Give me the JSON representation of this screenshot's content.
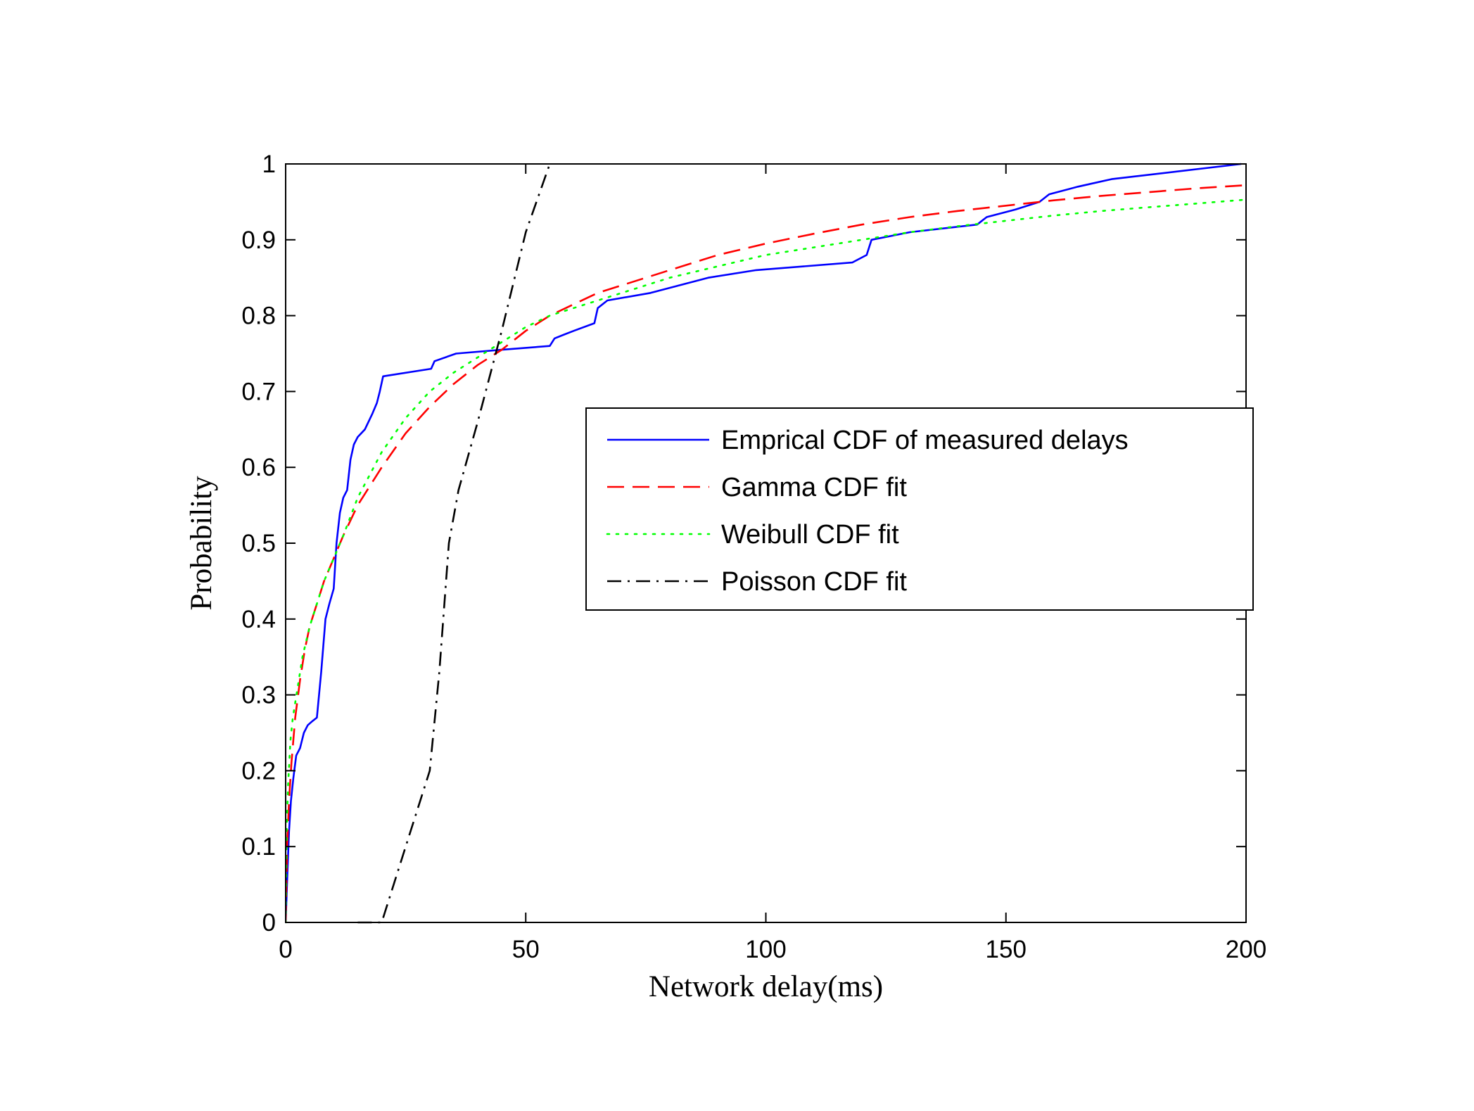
{
  "chart_data": {
    "type": "line",
    "xlabel": "Network delay(ms)",
    "ylabel": "Probability",
    "xlim": [
      0,
      200
    ],
    "ylim": [
      0,
      1
    ],
    "xticks": [
      0,
      50,
      100,
      150,
      200
    ],
    "yticks": [
      0,
      0.1,
      0.2,
      0.3,
      0.4,
      0.5,
      0.6,
      0.7,
      0.8,
      0.9,
      1
    ],
    "grid": false,
    "legend_position": "center-right",
    "series": [
      {
        "name": "Emprical CDF of measured delays",
        "color": "#0000ff",
        "style": "solid",
        "x": [
          0,
          0.4,
          0.7,
          1.1,
          1.6,
          2.2,
          3,
          3.8,
          4.6,
          5.5,
          6.5,
          7.4,
          8.3,
          9.1,
          10,
          10.6,
          11.3,
          12,
          12.8,
          13.5,
          14.2,
          15,
          16.5,
          18,
          19,
          19.6,
          20.3,
          30.3,
          31,
          35.5,
          45,
          55,
          56,
          58,
          60,
          64.3,
          65,
          67,
          76,
          88,
          98,
          118,
          121,
          122,
          130,
          144,
          146,
          152,
          157,
          159,
          165,
          172,
          199
        ],
        "y": [
          0,
          0.07,
          0.12,
          0.16,
          0.19,
          0.22,
          0.23,
          0.25,
          0.26,
          0.265,
          0.27,
          0.33,
          0.4,
          0.42,
          0.44,
          0.5,
          0.54,
          0.56,
          0.57,
          0.61,
          0.63,
          0.64,
          0.65,
          0.67,
          0.685,
          0.7,
          0.72,
          0.73,
          0.74,
          0.75,
          0.755,
          0.76,
          0.77,
          0.775,
          0.78,
          0.79,
          0.81,
          0.82,
          0.83,
          0.85,
          0.86,
          0.87,
          0.88,
          0.9,
          0.91,
          0.92,
          0.93,
          0.94,
          0.95,
          0.96,
          0.97,
          0.98,
          1.0
        ]
      },
      {
        "name": "Gamma CDF fit",
        "color": "#ff0000",
        "style": "dashed",
        "x": [
          0,
          0.3,
          0.7,
          1.2,
          2,
          3,
          4,
          5,
          6.5,
          8,
          10,
          12,
          15,
          20,
          25,
          30,
          35,
          40,
          45,
          50,
          55,
          60,
          65,
          70,
          75,
          80,
          90,
          100,
          110,
          120,
          130,
          140,
          150,
          160,
          170,
          180,
          190,
          200
        ],
        "y": [
          0,
          0.1,
          0.16,
          0.21,
          0.27,
          0.32,
          0.36,
          0.39,
          0.42,
          0.45,
          0.48,
          0.51,
          0.55,
          0.6,
          0.645,
          0.68,
          0.71,
          0.735,
          0.755,
          0.78,
          0.8,
          0.815,
          0.83,
          0.84,
          0.85,
          0.86,
          0.88,
          0.895,
          0.908,
          0.92,
          0.93,
          0.938,
          0.945,
          0.952,
          0.958,
          0.963,
          0.968,
          0.972
        ]
      },
      {
        "name": "Weibull CDF fit",
        "color": "#00ff00",
        "style": "dotted",
        "x": [
          0,
          0.2,
          0.5,
          1,
          1.5,
          2.5,
          3.5,
          5,
          6.5,
          8,
          10,
          12,
          15,
          20,
          25,
          30,
          35,
          40,
          45,
          50,
          55,
          60,
          65,
          70,
          75,
          80,
          90,
          100,
          110,
          120,
          130,
          140,
          150,
          160,
          170,
          180,
          190,
          200
        ],
        "y": [
          0,
          0.12,
          0.18,
          0.24,
          0.27,
          0.31,
          0.35,
          0.39,
          0.42,
          0.45,
          0.48,
          0.51,
          0.56,
          0.62,
          0.665,
          0.7,
          0.725,
          0.745,
          0.765,
          0.785,
          0.8,
          0.81,
          0.82,
          0.83,
          0.84,
          0.85,
          0.865,
          0.88,
          0.89,
          0.9,
          0.91,
          0.918,
          0.925,
          0.932,
          0.938,
          0.943,
          0.948,
          0.953
        ]
      },
      {
        "name": "Poisson CDF fit",
        "color": "#000000",
        "style": "dashdot",
        "x": [
          15,
          20,
          25,
          30,
          32,
          34,
          36,
          40,
          45,
          50,
          55
        ],
        "y": [
          0,
          0,
          0.1,
          0.2,
          0.33,
          0.5,
          0.57,
          0.66,
          0.78,
          0.91,
          1.0
        ]
      }
    ]
  }
}
